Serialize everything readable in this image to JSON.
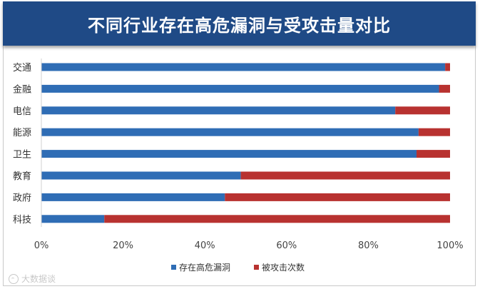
{
  "watermark": {
    "text": "大数据谈"
  },
  "chart_data": {
    "type": "bar",
    "orientation": "horizontal",
    "stacked": "percent",
    "title": "不同行业存在高危漏洞与受攻击量对比",
    "categories": [
      "交通",
      "金融",
      "电信",
      "能源",
      "卫生",
      "教育",
      "政府",
      "科技"
    ],
    "series": [
      {
        "name": "存在高危漏洞",
        "color": "#2f6db5",
        "values": [
          98.8,
          97.3,
          86.6,
          92.3,
          91.8,
          48.8,
          44.9,
          15.4
        ]
      },
      {
        "name": "被攻击次数",
        "color": "#b83230",
        "values": [
          1.2,
          2.7,
          13.4,
          7.7,
          8.2,
          51.2,
          55.1,
          84.6
        ]
      }
    ],
    "xlim": [
      0,
      100
    ],
    "xticks": [
      "0%",
      "20%",
      "40%",
      "60%",
      "80%",
      "100%"
    ],
    "legend_position": "bottom",
    "grid": false
  }
}
